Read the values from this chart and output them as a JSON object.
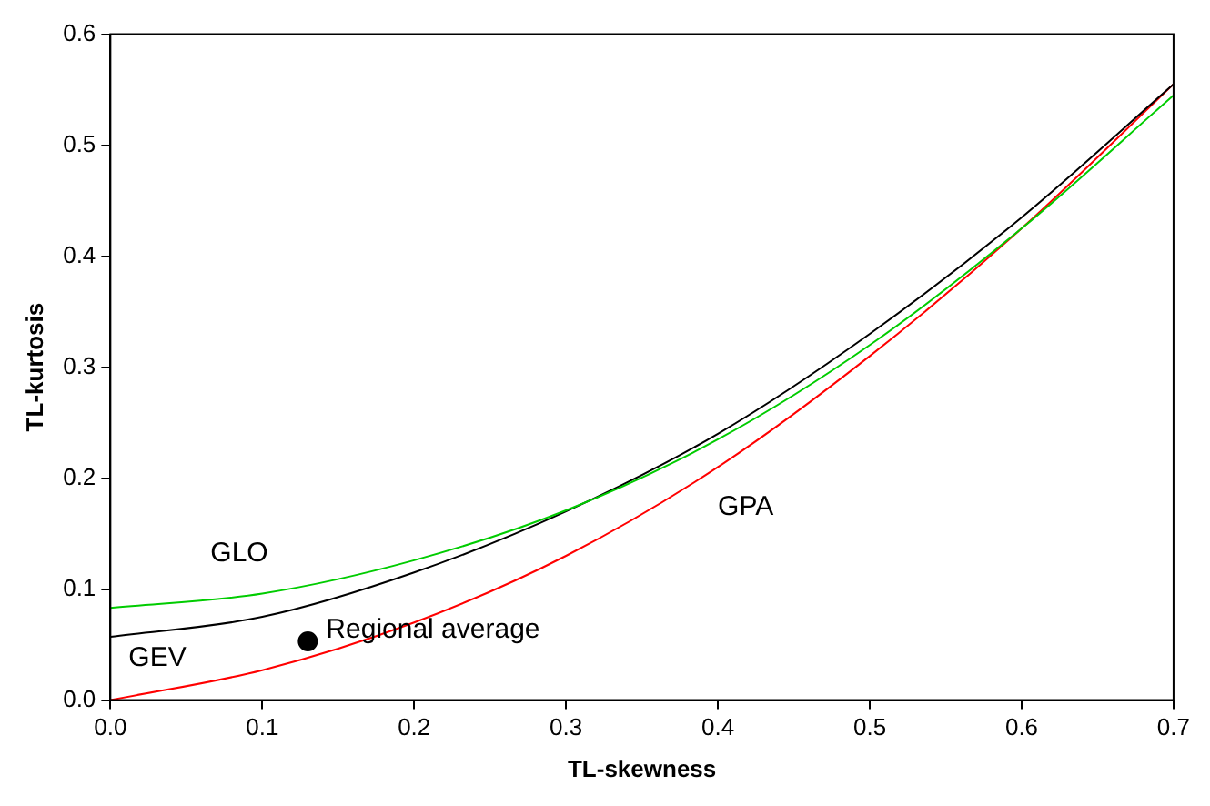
{
  "chart_data": {
    "type": "line",
    "xlabel": "TL-skewness",
    "ylabel": "TL-kurtosis",
    "xlim": [
      0,
      0.7
    ],
    "ylim": [
      0,
      0.6
    ],
    "xticks": [
      {
        "value": 0,
        "label": "0.0"
      },
      {
        "value": 0.1,
        "label": "0.1"
      },
      {
        "value": 0.2,
        "label": "0.2"
      },
      {
        "value": 0.3,
        "label": "0.3"
      },
      {
        "value": 0.4,
        "label": "0.4"
      },
      {
        "value": 0.5,
        "label": "0.5"
      },
      {
        "value": 0.6,
        "label": "0.6"
      },
      {
        "value": 0.7,
        "label": "0.7"
      }
    ],
    "yticks": [
      {
        "value": 0,
        "label": "0.0"
      },
      {
        "value": 0.1,
        "label": "0.1"
      },
      {
        "value": 0.2,
        "label": "0.2"
      },
      {
        "value": 0.3,
        "label": "0.3"
      },
      {
        "value": 0.4,
        "label": "0.4"
      },
      {
        "value": 0.5,
        "label": "0.5"
      },
      {
        "value": 0.6,
        "label": "0.6"
      }
    ],
    "grid": false,
    "legend": false,
    "marker": "none",
    "series": [
      {
        "type": "line",
        "name": "GLO",
        "color": "#00cc00",
        "x": [
          0,
          0.1,
          0.2,
          0.3,
          0.4,
          0.5,
          0.6,
          0.7
        ],
        "values": [
          0.083,
          0.096,
          0.126,
          0.171,
          0.235,
          0.32,
          0.425,
          0.545
        ]
      },
      {
        "type": "line",
        "name": "GEV",
        "color": "#000000",
        "x": [
          0,
          0.1,
          0.2,
          0.3,
          0.4,
          0.5,
          0.6,
          0.7
        ],
        "values": [
          0.057,
          0.075,
          0.115,
          0.17,
          0.24,
          0.33,
          0.435,
          0.555
        ]
      },
      {
        "type": "line",
        "name": "GPA",
        "color": "#ff0000",
        "x": [
          0,
          0.1,
          0.2,
          0.3,
          0.4,
          0.5,
          0.6,
          0.7
        ],
        "values": [
          0,
          0.027,
          0.07,
          0.13,
          0.21,
          0.31,
          0.425,
          0.555
        ]
      },
      {
        "type": "scatter",
        "name": "Regional average",
        "color": "#000000",
        "marker": "circle",
        "x": [
          0.13
        ],
        "values": [
          0.053
        ]
      }
    ]
  }
}
